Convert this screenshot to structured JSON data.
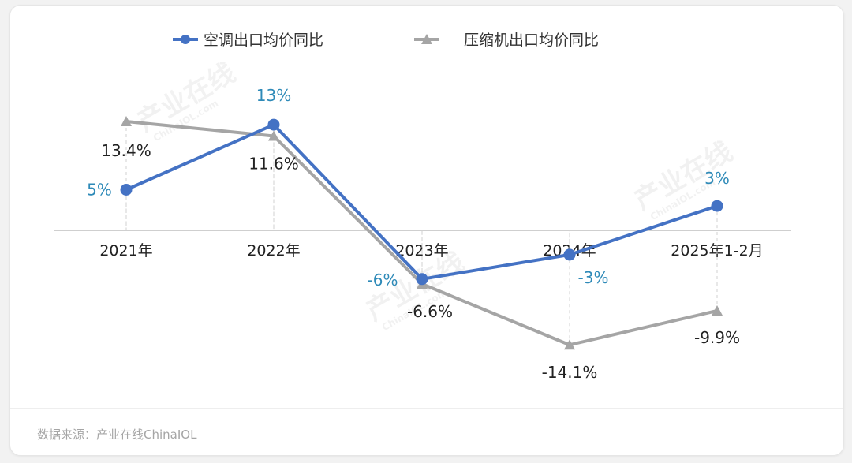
{
  "source_note": "数据来源：产业在线ChinaIOL",
  "watermark": {
    "text": "产业在线",
    "sub": "ChinaIOL.com"
  },
  "chart_data": {
    "type": "line",
    "title": "",
    "xlabel": "",
    "ylabel": "",
    "categories": [
      "2021年",
      "2022年",
      "2023年",
      "2024年",
      "2025年1-2月"
    ],
    "ylim": [
      -16,
      16
    ],
    "grid": false,
    "legend": "top-center",
    "series": [
      {
        "name": "空调出口均价同比",
        "values": [
          5,
          13,
          -6,
          -3,
          3
        ],
        "labels": [
          "5%",
          "13%",
          "-6%",
          "-3%",
          "3%"
        ],
        "color": "#4472c4",
        "marker": "circle"
      },
      {
        "name": "压缩机出口均价同比",
        "values": [
          13.4,
          11.6,
          -6.6,
          -14.1,
          -9.9
        ],
        "labels": [
          "13.4%",
          "11.6%",
          "-6.6%",
          "-14.1%",
          "-9.9%"
        ],
        "color": "#a5a5a5",
        "marker": "triangle"
      }
    ],
    "colors": {
      "label_ac": "#2e8ab8",
      "label_comp": "#222222",
      "axis": "#bfbfbf"
    }
  }
}
